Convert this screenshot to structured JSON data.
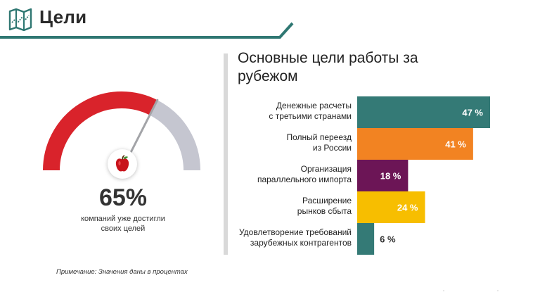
{
  "header": {
    "title": "Цели",
    "icon": "map-icon",
    "accent_color": "#2f7772"
  },
  "gauge": {
    "value_label": "65%",
    "fraction": 0.65,
    "caption_line1": "компаний уже достигли",
    "caption_line2": "своих целей",
    "filled_color": "#d9232b",
    "empty_color": "#c5c6d0",
    "icon": "apple-icon"
  },
  "note": "Примечание: Значения даны в процентах",
  "chart_data": {
    "type": "bar",
    "orientation": "horizontal",
    "title": "Основные цели работы за рубежом",
    "categories": [
      [
        "Денежные расчеты",
        "с третьими странами"
      ],
      [
        "Полный переезд",
        "из России"
      ],
      [
        "Организация",
        "параллельного импорта"
      ],
      [
        "Расширение",
        "рынков сбыта"
      ],
      [
        "Удовлетворение требований",
        "зарубежных контрагентов"
      ]
    ],
    "values": [
      47,
      41,
      18,
      24,
      6
    ],
    "value_labels": [
      "47 %",
      "41 %",
      "18 %",
      "24 %",
      "6 %"
    ],
    "colors": [
      "#347a76",
      "#f28322",
      "#6c1556",
      "#f7be00",
      "#347a76"
    ],
    "xlim": [
      0,
      47
    ]
  }
}
